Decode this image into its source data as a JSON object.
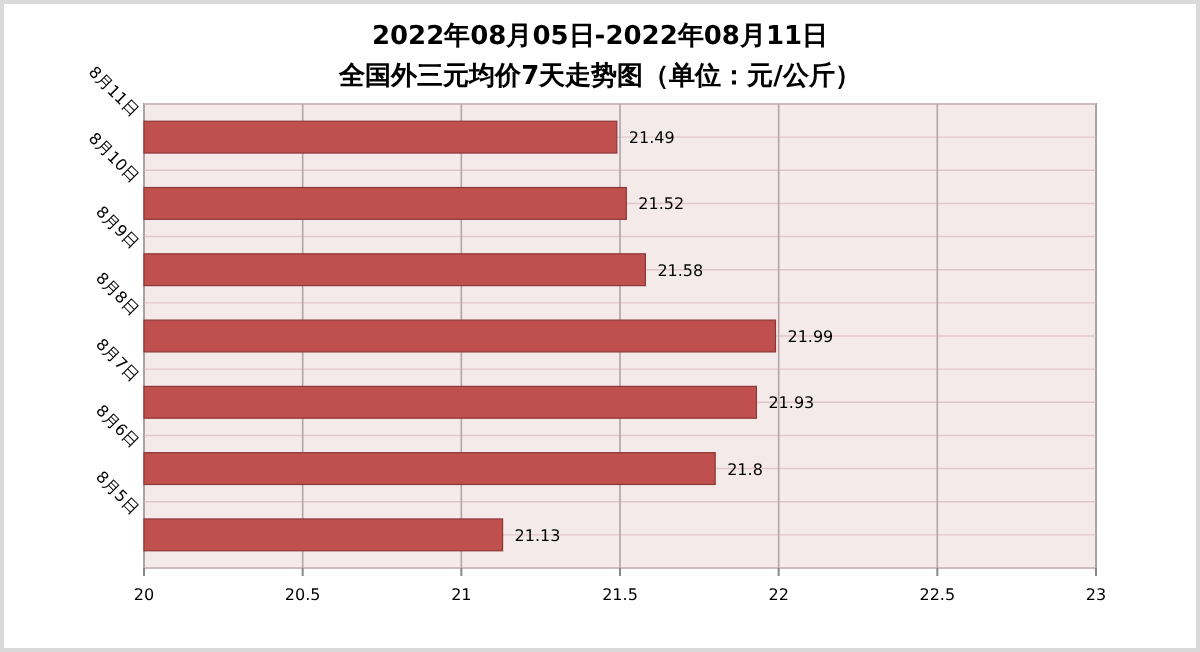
{
  "chart_data": {
    "type": "bar",
    "orientation": "horizontal",
    "title": "2022年08月05日-2022年08月11日",
    "subtitle": "全国外三元均价7天走势图（单位：元/公斤）",
    "categories": [
      "8月11日",
      "8月10日",
      "8月9日",
      "8月8日",
      "8月7日",
      "8月6日",
      "8月5日"
    ],
    "values": [
      21.49,
      21.52,
      21.58,
      21.99,
      21.93,
      21.8,
      21.13
    ],
    "color": "#c0504d",
    "data_labels": true,
    "xlim": [
      20,
      23
    ],
    "xticks": [
      20,
      20.5,
      21,
      21.5,
      22,
      22.5,
      23
    ],
    "grid": "x"
  }
}
